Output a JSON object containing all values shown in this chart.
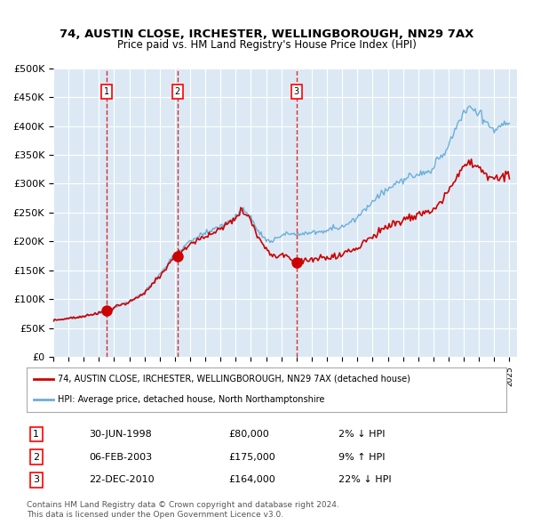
{
  "title": "74, AUSTIN CLOSE, IRCHESTER, WELLINGBOROUGH, NN29 7AX",
  "subtitle": "Price paid vs. HM Land Registry's House Price Index (HPI)",
  "bg_color": "#dce9f5",
  "plot_bg_color": "#dce9f5",
  "hpi_color": "#6baed6",
  "price_color": "#cc0000",
  "sale_marker_color": "#cc0000",
  "vline_color": "#cc0000",
  "sales": [
    {
      "date": "1998-06-30",
      "price": 80000,
      "label": "1",
      "pct": "2%",
      "dir": "↓"
    },
    {
      "date": "2003-02-06",
      "price": 175000,
      "label": "2",
      "pct": "9%",
      "dir": "↑"
    },
    {
      "date": "2010-12-22",
      "price": 164000,
      "label": "3",
      "pct": "22%",
      "dir": "↓"
    }
  ],
  "sale_dates_display": [
    "30-JUN-1998",
    "06-FEB-2003",
    "22-DEC-2010"
  ],
  "sale_prices_display": [
    "£80,000",
    "£175,000",
    "£164,000"
  ],
  "sale_hpi_display": [
    "2% ↓ HPI",
    "9% ↑ HPI",
    "22% ↓ HPI"
  ],
  "legend_line1": "74, AUSTIN CLOSE, IRCHESTER, WELLINGBOROUGH, NN29 7AX (detached house)",
  "legend_line2": "HPI: Average price, detached house, North Northamptonshire",
  "footer1": "Contains HM Land Registry data © Crown copyright and database right 2024.",
  "footer2": "This data is licensed under the Open Government Licence v3.0.",
  "ylim": [
    0,
    500000
  ],
  "yticks": [
    0,
    50000,
    100000,
    150000,
    200000,
    250000,
    300000,
    350000,
    400000,
    450000,
    500000
  ],
  "ytick_labels": [
    "£0",
    "£50K",
    "£100K",
    "£150K",
    "£200K",
    "£250K",
    "£300K",
    "£350K",
    "£400K",
    "£450K",
    "£500K"
  ],
  "xstart_year": 1995,
  "xend_year": 2025
}
